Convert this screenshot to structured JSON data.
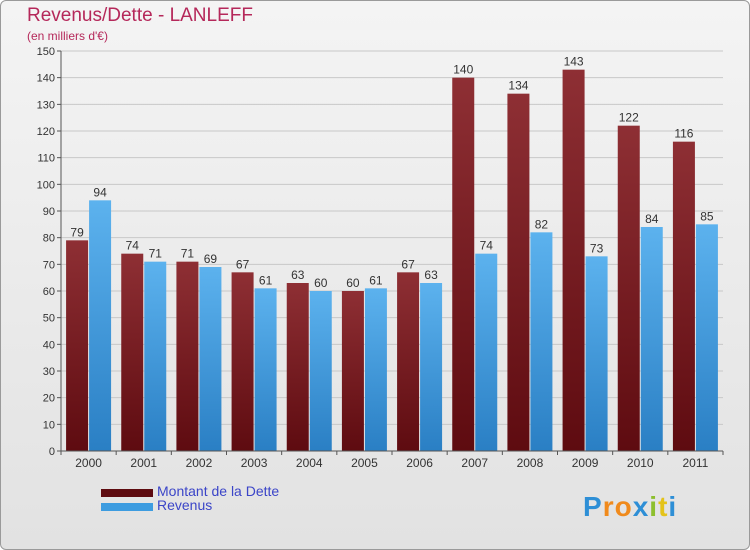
{
  "header": {
    "title": "Revenus/Dette - LANLEFF",
    "subtitle": "(en milliers d'€)"
  },
  "colors": {
    "dette": "#7a1c22",
    "revenus": "#3d9ce0",
    "title": "#b5285a",
    "legend_text": "#3b45c8"
  },
  "legend": {
    "dette_label": "Montant de la Dette",
    "revenus_label": "Revenus"
  },
  "logo": {
    "text": "Proxiti"
  },
  "chart_data": {
    "type": "bar",
    "categories": [
      "2000",
      "2001",
      "2002",
      "2003",
      "2004",
      "2005",
      "2006",
      "2007",
      "2008",
      "2009",
      "2010",
      "2011"
    ],
    "series": [
      {
        "name": "Montant de la Dette",
        "values": [
          79,
          74,
          71,
          67,
          63,
          60,
          67,
          140,
          134,
          143,
          122,
          116
        ]
      },
      {
        "name": "Revenus",
        "values": [
          94,
          71,
          69,
          61,
          60,
          61,
          63,
          74,
          82,
          73,
          84,
          85
        ]
      }
    ],
    "title": "Revenus/Dette - LANLEFF",
    "subtitle": "(en milliers d'€)",
    "ylim": [
      0,
      150
    ],
    "ytick_step": 10,
    "grid": true,
    "legend": "bottom-left"
  }
}
